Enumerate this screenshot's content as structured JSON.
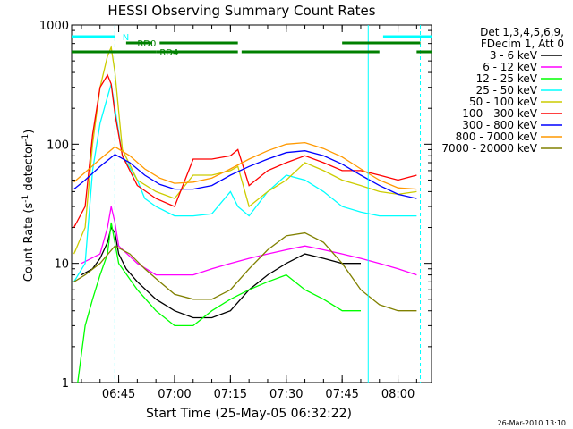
{
  "chart_data": {
    "type": "line",
    "title": "HESSI Observing Summary Count Rates",
    "xlabel": "Start Time (25-May-05 06:32:22)",
    "ylabel_main": "Count Rate (s",
    "ylabel_sup1": "-1",
    "ylabel_mid": " detector",
    "ylabel_sup2": "-1",
    "ylabel_end": ")",
    "y_scale": "log",
    "ylim": [
      1,
      1000
    ],
    "xlim": [
      "06:32:22",
      "08:09:00"
    ],
    "x_ticks": [
      "06:45",
      "07:00",
      "07:15",
      "07:30",
      "07:45",
      "08:00"
    ],
    "y_ticks": [
      "1",
      "10",
      "100",
      "1000"
    ],
    "legend": {
      "placement": "right",
      "header1": "Det 1,3,4,5,6,9,",
      "header2": "FDecim 1, Att 0"
    },
    "series": [
      {
        "name": "3 - 6 keV",
        "color": "#000000",
        "x": [
          "06:35",
          "06:38",
          "06:40",
          "06:42",
          "06:43",
          "06:44",
          "06:45",
          "06:47",
          "06:50",
          "06:55",
          "07:00",
          "07:05",
          "07:10",
          "07:15",
          "07:20",
          "07:25",
          "07:30",
          "07:35",
          "07:40",
          "07:45",
          "07:50"
        ],
        "y": [
          8,
          9,
          11,
          15,
          20,
          18,
          12,
          9,
          7,
          5,
          4,
          3.5,
          3.5,
          4,
          6,
          8,
          10,
          12,
          11,
          10,
          10
        ]
      },
      {
        "name": "6 - 12 keV",
        "color": "#ff00ff",
        "x": [
          "06:35",
          "06:40",
          "06:42",
          "06:43",
          "06:44",
          "06:45",
          "06:50",
          "06:55",
          "07:00",
          "07:05",
          "07:10",
          "07:15",
          "07:20",
          "07:25",
          "07:30",
          "07:35",
          "07:40",
          "07:45",
          "07:50",
          "07:55",
          "08:00",
          "08:05"
        ],
        "y": [
          10,
          12,
          20,
          30,
          22,
          14,
          10,
          8,
          8,
          8,
          9,
          10,
          11,
          12,
          13,
          14,
          13,
          12,
          11,
          10,
          9,
          8
        ]
      },
      {
        "name": "12 - 25 keV",
        "color": "#00ff00",
        "x": [
          "06:34",
          "06:36",
          "06:38",
          "06:40",
          "06:42",
          "06:43",
          "06:45",
          "06:50",
          "06:55",
          "07:00",
          "07:05",
          "07:10",
          "07:15",
          "07:20",
          "07:25",
          "07:30",
          "07:35",
          "07:40",
          "07:45",
          "07:50"
        ],
        "y": [
          1,
          3,
          5,
          8,
          12,
          22,
          10,
          6,
          4,
          3,
          3,
          4,
          5,
          6,
          7,
          8,
          6,
          5,
          4,
          4
        ]
      },
      {
        "name": "25 - 50 keV",
        "color": "#00ffff",
        "x": [
          "06:33",
          "06:36",
          "06:38",
          "06:40",
          "06:42",
          "06:43",
          "06:44",
          "06:46",
          "06:50",
          "06:52",
          "06:55",
          "07:00",
          "07:05",
          "07:10",
          "07:15",
          "07:17",
          "07:20",
          "07:25",
          "07:30",
          "07:35",
          "07:40",
          "07:45",
          "07:50",
          "07:55",
          "08:00",
          "08:05"
        ],
        "y": [
          7,
          10,
          60,
          150,
          250,
          320,
          200,
          80,
          50,
          35,
          30,
          25,
          25,
          26,
          40,
          30,
          25,
          40,
          55,
          50,
          40,
          30,
          27,
          25,
          25,
          25
        ]
      },
      {
        "name": "50 - 100 keV",
        "color": "#cccc00",
        "x": [
          "06:33",
          "06:36",
          "06:38",
          "06:40",
          "06:42",
          "06:43",
          "06:44",
          "06:46",
          "06:50",
          "06:55",
          "07:00",
          "07:05",
          "07:10",
          "07:15",
          "07:17",
          "07:20",
          "07:25",
          "07:30",
          "07:35",
          "07:40",
          "07:45",
          "07:50",
          "07:55",
          "08:00",
          "08:05"
        ],
        "y": [
          12,
          20,
          100,
          300,
          550,
          650,
          400,
          90,
          50,
          40,
          35,
          55,
          55,
          60,
          65,
          30,
          40,
          50,
          70,
          60,
          50,
          45,
          40,
          38,
          40
        ]
      },
      {
        "name": "100 - 300 keV",
        "color": "#ff0000",
        "x": [
          "06:33",
          "06:36",
          "06:38",
          "06:40",
          "06:42",
          "06:43",
          "06:44",
          "06:46",
          "06:50",
          "06:55",
          "07:00",
          "07:05",
          "07:10",
          "07:15",
          "07:17",
          "07:20",
          "07:25",
          "07:30",
          "07:35",
          "07:40",
          "07:45",
          "07:50",
          "07:55",
          "08:00",
          "08:05"
        ],
        "y": [
          20,
          30,
          120,
          300,
          380,
          320,
          180,
          80,
          45,
          35,
          30,
          75,
          75,
          80,
          90,
          45,
          60,
          70,
          80,
          70,
          60,
          60,
          55,
          50,
          55
        ]
      },
      {
        "name": "300 - 800 keV",
        "color": "#0000ff",
        "x": [
          "06:33",
          "06:36",
          "06:40",
          "06:44",
          "06:48",
          "06:52",
          "06:56",
          "07:00",
          "07:05",
          "07:10",
          "07:15",
          "07:20",
          "07:25",
          "07:30",
          "07:35",
          "07:40",
          "07:45",
          "07:50",
          "07:55",
          "08:00",
          "08:05"
        ],
        "y": [
          42,
          50,
          65,
          82,
          70,
          55,
          46,
          42,
          42,
          45,
          55,
          65,
          75,
          85,
          88,
          80,
          68,
          55,
          45,
          38,
          35
        ]
      },
      {
        "name": "800 - 7000 keV",
        "color": "#ff9900",
        "x": [
          "06:33",
          "06:36",
          "06:40",
          "06:44",
          "06:48",
          "06:52",
          "06:56",
          "07:00",
          "07:05",
          "07:10",
          "07:15",
          "07:20",
          "07:25",
          "07:30",
          "07:35",
          "07:40",
          "07:45",
          "07:50",
          "07:55",
          "08:00",
          "08:05"
        ],
        "y": [
          48,
          58,
          75,
          95,
          80,
          62,
          52,
          47,
          48,
          52,
          62,
          75,
          88,
          100,
          103,
          92,
          78,
          62,
          50,
          43,
          42
        ]
      },
      {
        "name": "7000 - 20000 keV",
        "color": "#808000",
        "x": [
          "06:33",
          "06:36",
          "06:40",
          "06:44",
          "06:48",
          "06:52",
          "06:56",
          "07:00",
          "07:05",
          "07:10",
          "07:15",
          "07:20",
          "07:25",
          "07:30",
          "07:35",
          "07:40",
          "07:45",
          "07:50",
          "07:55",
          "08:00",
          "08:05"
        ],
        "y": [
          7,
          8,
          10,
          14,
          12,
          9,
          7,
          5.5,
          5,
          5,
          6,
          9,
          13,
          17,
          18,
          15,
          10,
          6,
          4.5,
          4,
          4
        ]
      }
    ],
    "markers": [
      {
        "label": "N",
        "color": "#00ffff",
        "row": 1,
        "segments": [
          [
            "06:32:22",
            "06:44"
          ],
          [
            "07:56",
            "08:09"
          ]
        ]
      },
      {
        "label": "RD0",
        "color": "#008000",
        "row": 2,
        "segments": [
          [
            "06:47",
            "06:54"
          ],
          [
            "06:56",
            "07:17"
          ],
          [
            "07:45",
            "08:06"
          ]
        ]
      },
      {
        "label": "RD4",
        "color": "#008000",
        "row": 3,
        "segments": [
          [
            "06:32:22",
            "06:55"
          ],
          [
            "06:55",
            "07:17"
          ],
          [
            "07:18",
            "07:55"
          ],
          [
            "08:05",
            "08:09"
          ]
        ]
      }
    ],
    "vlines": [
      {
        "x": "06:44",
        "color": "#00ffff",
        "style": "dashed"
      },
      {
        "x": "07:52",
        "color": "#00ffff",
        "style": "solid"
      },
      {
        "x": "08:06",
        "color": "#00ffff",
        "style": "dashed"
      }
    ]
  },
  "footer": {
    "timestamp": "26-Mar-2010 13:10"
  }
}
